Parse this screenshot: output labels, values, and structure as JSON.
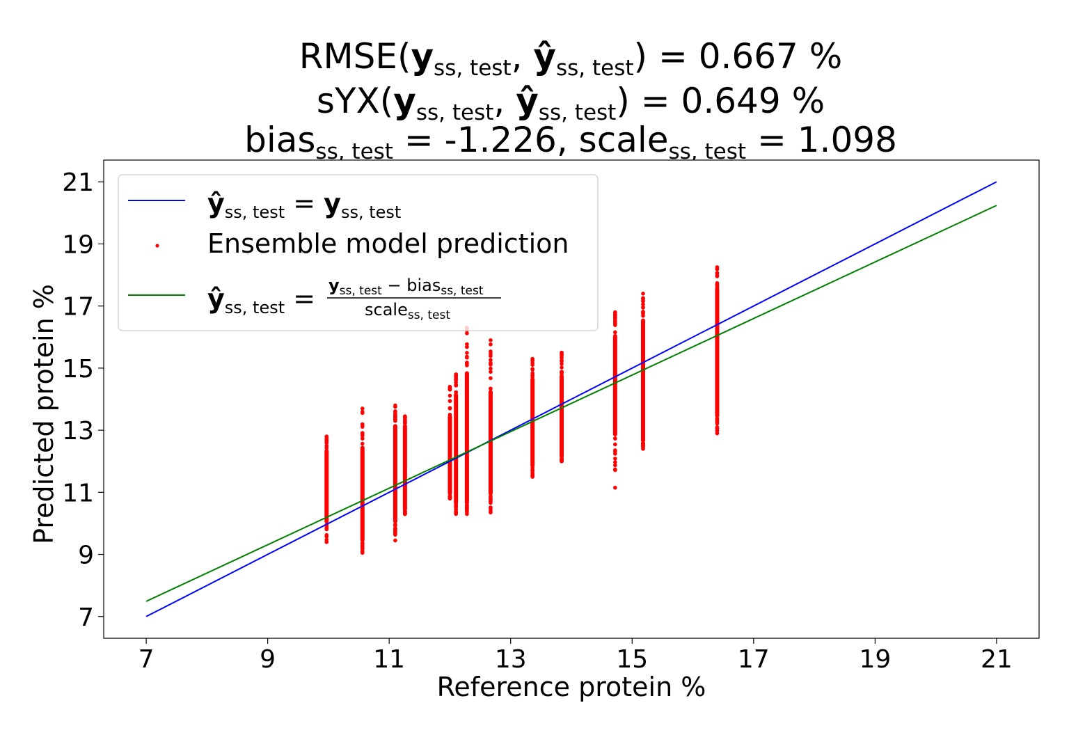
{
  "chart_data": {
    "type": "scatter",
    "title_lines": [
      {
        "lhs": "RMSE",
        "value": "= 0.667 %"
      },
      {
        "lhs": "sYX",
        "value": "= 0.649 %"
      },
      {
        "bias_word": "bias",
        "bias_value": "= -1.226,",
        "scale_word": "scale",
        "scale_value": "= 1.098"
      }
    ],
    "symbol_y": "y",
    "symbol_yhat": "ŷ",
    "subscript": "ss, test",
    "xlabel": "Reference protein %",
    "ylabel": "Predicted protein %",
    "xlim": [
      6.3,
      21.7
    ],
    "ylim": [
      6.3,
      21.7
    ],
    "xticks": [
      7,
      9,
      11,
      13,
      15,
      17,
      19,
      21
    ],
    "yticks": [
      7,
      9,
      11,
      13,
      15,
      17,
      19,
      21
    ],
    "grid": false,
    "legend_position": "upper-left",
    "legend": {
      "identity_label": "=",
      "scatter_label": "Ensemble model prediction",
      "fit_label": "=",
      "fit_numerator_minus": "−",
      "fit_numerator_word": "bias",
      "fit_denominator_word": "scale"
    },
    "bias": -1.226,
    "scale": 1.098,
    "series": [
      {
        "kind": "line",
        "color": "#0000ff",
        "x": [
          7,
          21
        ],
        "y": [
          7,
          21
        ]
      },
      {
        "kind": "line",
        "color": "#008000",
        "x": [
          7,
          21
        ],
        "y": [
          7.49,
          20.24
        ]
      },
      {
        "kind": "scatter",
        "color": "#ff0000",
        "columns": [
          {
            "x": 9.97,
            "y_min": 9.4,
            "y_max": 12.8,
            "dense_min": 10.0,
            "dense_max": 12.4
          },
          {
            "x": 10.56,
            "y_min": 9.05,
            "y_max": 13.7,
            "dense_min": 9.4,
            "dense_max": 12.5
          },
          {
            "x": 11.1,
            "y_min": 9.45,
            "y_max": 13.8,
            "dense_min": 10.0,
            "dense_max": 13.2
          },
          {
            "x": 11.26,
            "y_min": 10.3,
            "y_max": 13.45,
            "dense_min": 10.4,
            "dense_max": 13.2
          },
          {
            "x": 12.0,
            "y_min": 10.8,
            "y_max": 14.4,
            "dense_min": 10.9,
            "dense_max": 13.5
          },
          {
            "x": 12.1,
            "y_min": 10.3,
            "y_max": 14.8,
            "dense_min": 10.6,
            "dense_max": 14.2
          },
          {
            "x": 12.28,
            "y_min": 10.3,
            "y_max": 16.3,
            "dense_min": 10.6,
            "dense_max": 14.9
          },
          {
            "x": 12.67,
            "y_min": 10.35,
            "y_max": 15.9,
            "dense_min": 10.9,
            "dense_max": 14.3
          },
          {
            "x": 13.36,
            "y_min": 11.5,
            "y_max": 15.3,
            "dense_min": 11.8,
            "dense_max": 14.7
          },
          {
            "x": 13.84,
            "y_min": 12.0,
            "y_max": 15.5,
            "dense_min": 12.1,
            "dense_max": 14.8
          },
          {
            "x": 14.72,
            "y_min": 11.15,
            "y_max": 16.8,
            "dense_min": 12.8,
            "dense_max": 16.1
          },
          {
            "x": 15.18,
            "y_min": 12.4,
            "y_max": 17.4,
            "dense_min": 12.6,
            "dense_max": 16.6
          },
          {
            "x": 16.4,
            "y_min": 12.9,
            "y_max": 18.25,
            "dense_min": 13.4,
            "dense_max": 17.6
          }
        ]
      }
    ]
  }
}
